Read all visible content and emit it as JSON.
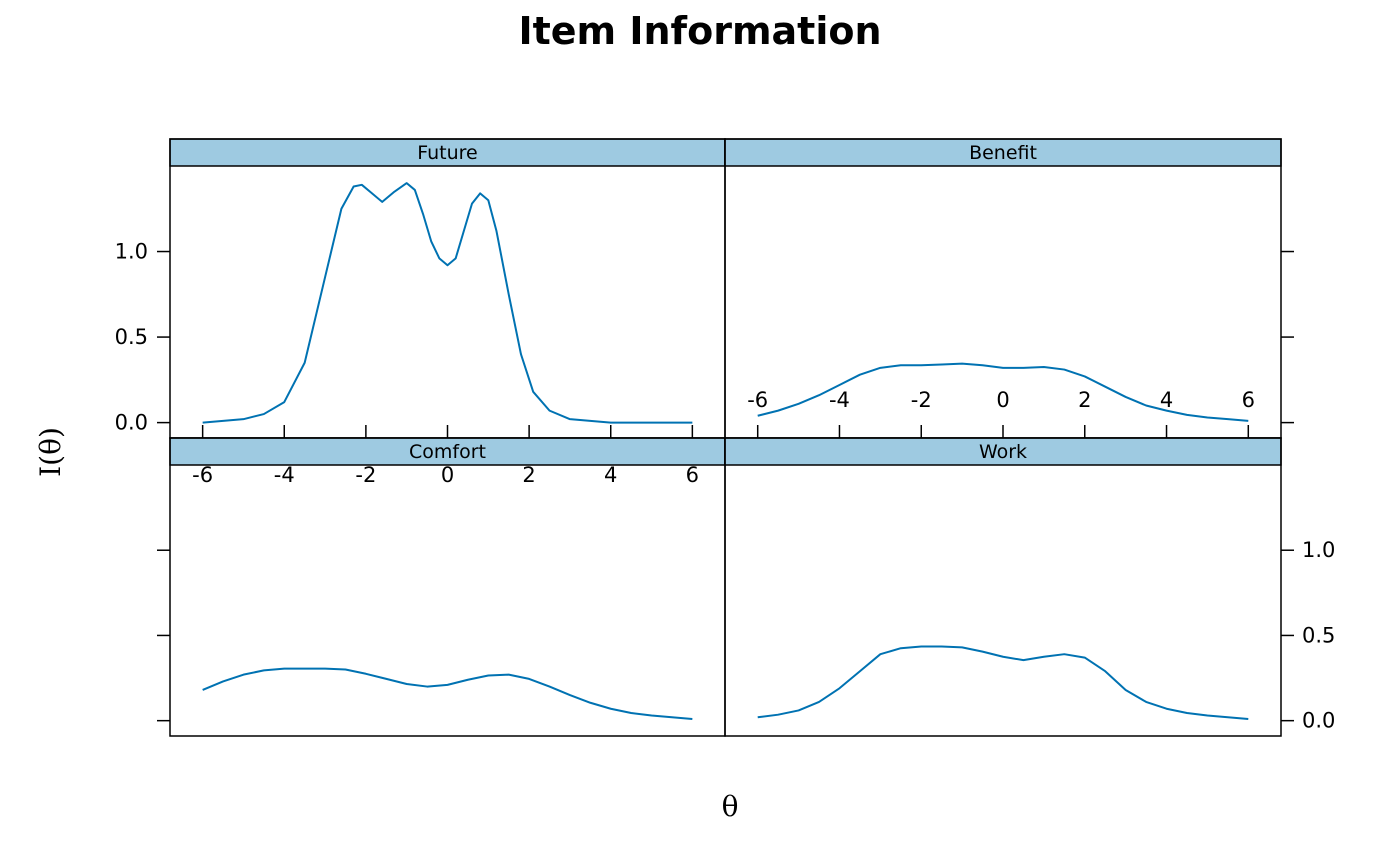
{
  "chart_data": {
    "type": "line",
    "title": "Item Information",
    "xlabel": "θ",
    "ylabel": "I(θ)",
    "xlim": [
      -6.8,
      6.8
    ],
    "ylim": [
      -0.09,
      1.5
    ],
    "x_ticks": [
      -6,
      -4,
      -2,
      0,
      2,
      4,
      6
    ],
    "x_tick_labels": [
      "-6",
      "-4",
      "-2",
      "0",
      "2",
      "4",
      "6"
    ],
    "y_ticks": [
      0.0,
      0.5,
      1.0
    ],
    "y_tick_labels": [
      "0.0",
      "0.5",
      "1.0"
    ],
    "line_color": "#0072b2",
    "strip_color": "#9ecae1",
    "panels": [
      {
        "name": "Future",
        "x": [
          -6,
          -5,
          -4.5,
          -4,
          -3.5,
          -3,
          -2.6,
          -2.3,
          -2.1,
          -1.9,
          -1.6,
          -1.3,
          -1.0,
          -0.8,
          -0.6,
          -0.4,
          -0.2,
          0,
          0.2,
          0.4,
          0.6,
          0.8,
          1.0,
          1.2,
          1.5,
          1.8,
          2.1,
          2.5,
          3,
          3.5,
          4,
          5,
          6
        ],
        "y": [
          0.0,
          0.02,
          0.05,
          0.12,
          0.35,
          0.85,
          1.25,
          1.38,
          1.39,
          1.35,
          1.29,
          1.35,
          1.4,
          1.36,
          1.22,
          1.06,
          0.96,
          0.92,
          0.96,
          1.12,
          1.28,
          1.34,
          1.3,
          1.12,
          0.75,
          0.4,
          0.18,
          0.07,
          0.02,
          0.01,
          0.0,
          0.0,
          0.0
        ]
      },
      {
        "name": "Benefit",
        "x": [
          -6,
          -5.5,
          -5,
          -4.5,
          -4,
          -3.5,
          -3,
          -2.5,
          -2,
          -1.5,
          -1,
          -0.5,
          0,
          0.5,
          1,
          1.5,
          2,
          2.5,
          3,
          3.5,
          4,
          4.5,
          5,
          5.5,
          6
        ],
        "y": [
          0.04,
          0.07,
          0.11,
          0.16,
          0.22,
          0.28,
          0.32,
          0.335,
          0.335,
          0.34,
          0.345,
          0.335,
          0.32,
          0.32,
          0.325,
          0.31,
          0.27,
          0.21,
          0.15,
          0.1,
          0.07,
          0.045,
          0.03,
          0.02,
          0.01
        ]
      },
      {
        "name": "Comfort",
        "x": [
          -6,
          -5.5,
          -5,
          -4.5,
          -4,
          -3.5,
          -3,
          -2.5,
          -2,
          -1.5,
          -1,
          -0.5,
          0,
          0.5,
          1,
          1.5,
          2,
          2.5,
          3,
          3.5,
          4,
          4.5,
          5,
          5.5,
          6
        ],
        "y": [
          0.18,
          0.23,
          0.27,
          0.295,
          0.305,
          0.305,
          0.305,
          0.3,
          0.275,
          0.245,
          0.215,
          0.2,
          0.21,
          0.24,
          0.265,
          0.27,
          0.245,
          0.2,
          0.15,
          0.105,
          0.07,
          0.045,
          0.03,
          0.02,
          0.01
        ]
      },
      {
        "name": "Work",
        "x": [
          -6,
          -5.5,
          -5,
          -4.5,
          -4,
          -3.5,
          -3,
          -2.5,
          -2,
          -1.5,
          -1,
          -0.5,
          0,
          0.5,
          1,
          1.5,
          2,
          2.5,
          3,
          3.5,
          4,
          4.5,
          5,
          5.5,
          6
        ],
        "y": [
          0.02,
          0.035,
          0.06,
          0.11,
          0.19,
          0.29,
          0.39,
          0.425,
          0.435,
          0.435,
          0.43,
          0.405,
          0.375,
          0.355,
          0.375,
          0.39,
          0.37,
          0.29,
          0.18,
          0.11,
          0.07,
          0.045,
          0.03,
          0.02,
          0.01
        ]
      }
    ]
  }
}
